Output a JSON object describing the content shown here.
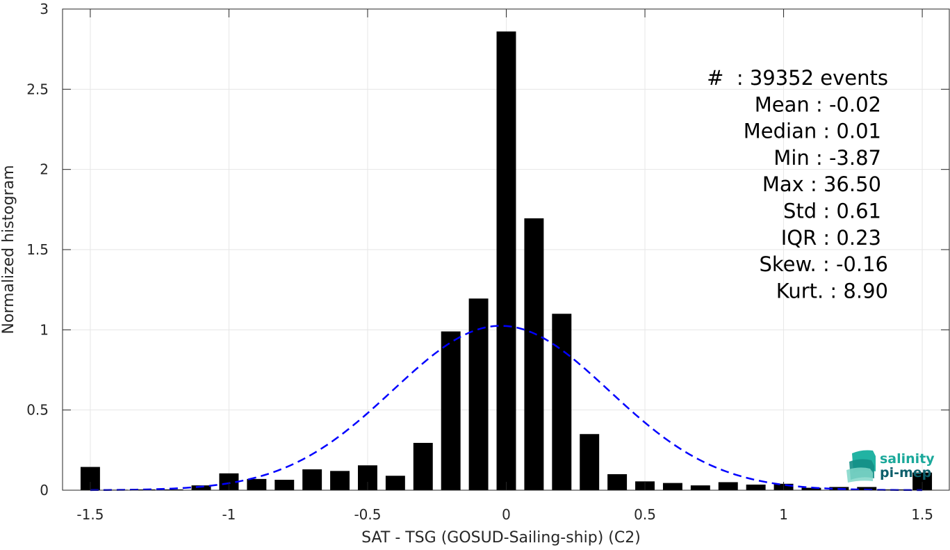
{
  "chart_data": {
    "type": "bar",
    "xlabel": "SAT - TSG (GOSUD-Sailing-ship) (C2)",
    "ylabel": "Normalized histogram",
    "xlim": [
      -1.6,
      1.6
    ],
    "ylim": [
      0,
      3
    ],
    "xticks": [
      -1.5,
      -1,
      -0.5,
      0,
      0.5,
      1,
      1.5
    ],
    "xtick_labels": [
      "-1.5",
      "-1",
      "-0.5",
      "0",
      "0.5",
      "1",
      "1.5"
    ],
    "yticks": [
      0,
      0.5,
      1,
      1.5,
      2,
      2.5,
      3
    ],
    "ytick_labels": [
      "0",
      "0.5",
      "1",
      "1.5",
      "2",
      "2.5",
      "3"
    ],
    "grid": true,
    "bin_width": 0.1,
    "bar_color": "#000000",
    "bins": [
      {
        "x": -1.5,
        "value": 0.145
      },
      {
        "x": -1.4,
        "value": 0.003
      },
      {
        "x": -1.3,
        "value": 0.005
      },
      {
        "x": -1.2,
        "value": 0.005
      },
      {
        "x": -1.1,
        "value": 0.03
      },
      {
        "x": -1.0,
        "value": 0.105
      },
      {
        "x": -0.9,
        "value": 0.07
      },
      {
        "x": -0.8,
        "value": 0.065
      },
      {
        "x": -0.7,
        "value": 0.13
      },
      {
        "x": -0.6,
        "value": 0.12
      },
      {
        "x": -0.5,
        "value": 0.155
      },
      {
        "x": -0.4,
        "value": 0.09
      },
      {
        "x": -0.3,
        "value": 0.295
      },
      {
        "x": -0.2,
        "value": 0.99
      },
      {
        "x": -0.1,
        "value": 1.195
      },
      {
        "x": 0.0,
        "value": 2.86
      },
      {
        "x": 0.1,
        "value": 1.695
      },
      {
        "x": 0.2,
        "value": 1.1
      },
      {
        "x": 0.3,
        "value": 0.35
      },
      {
        "x": 0.4,
        "value": 0.1
      },
      {
        "x": 0.5,
        "value": 0.055
      },
      {
        "x": 0.6,
        "value": 0.045
      },
      {
        "x": 0.7,
        "value": 0.03
      },
      {
        "x": 0.8,
        "value": 0.05
      },
      {
        "x": 0.9,
        "value": 0.035
      },
      {
        "x": 1.0,
        "value": 0.04
      },
      {
        "x": 1.1,
        "value": 0.015
      },
      {
        "x": 1.2,
        "value": 0.02
      },
      {
        "x": 1.3,
        "value": 0.02
      },
      {
        "x": 1.4,
        "value": 0.005
      },
      {
        "x": 1.5,
        "value": 0.11
      }
    ],
    "fit_curve": {
      "type": "gaussian",
      "line_style": "dashed",
      "color": "#0000ff",
      "mean": -0.02,
      "peak": 1.025,
      "sigma": 0.39,
      "x_range": [
        -1.5,
        1.5
      ]
    },
    "stats_lines": [
      "#  : 39352 events",
      "Mean : -0.02",
      "Median : 0.01",
      "Min : -3.87",
      "Max : 36.50",
      "Std : 0.61",
      "IQR : 0.23",
      "Skew. : -0.16",
      "Kurt. : 8.90"
    ]
  },
  "logo": {
    "line1": "salinity",
    "line2": "pi-mep",
    "color_top": "#1aa89a",
    "color_bottom": "#0d5f6b"
  }
}
